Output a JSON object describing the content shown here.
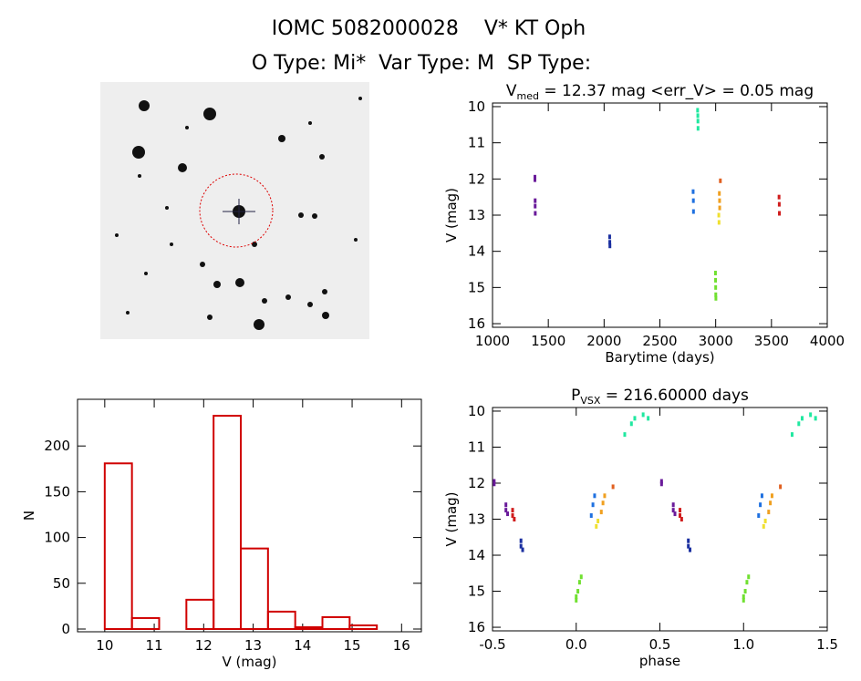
{
  "header": {
    "title": "IOMC 5082000028    V* KT Oph",
    "subtitle": "O Type: Mi*  Var Type: M  SP Type:"
  },
  "chart_data": [
    {
      "type": "scatter",
      "title": {
        "main": "V",
        "sub": "med",
        "rest": " = 12.37 mag <err_V> = 0.05 mag"
      },
      "x_label": "Barytime (days)",
      "y_label": "V (mag)",
      "xlim": [
        1000,
        4000
      ],
      "xticks": [
        1000,
        1500,
        2000,
        2500,
        3000,
        3500,
        4000
      ],
      "ylim": [
        16.1,
        9.9
      ],
      "yticks": [
        10,
        11,
        12,
        13,
        14,
        15,
        16
      ],
      "series": [
        {
          "color": "#6a1b9a",
          "x": [
            1380,
            1380,
            1382,
            1382,
            1383
          ],
          "values": [
            11.95,
            12.02,
            12.6,
            12.75,
            12.95
          ]
        },
        {
          "color": "#1a2fa0",
          "x": [
            2050,
            2051,
            2052
          ],
          "values": [
            13.6,
            13.75,
            13.85
          ]
        },
        {
          "color": "#1e70e0",
          "x": [
            2798,
            2800,
            2801
          ],
          "values": [
            12.35,
            12.6,
            12.9
          ]
        },
        {
          "color": "#20e8a0",
          "x": [
            2838,
            2840,
            2841,
            2842
          ],
          "values": [
            10.1,
            10.25,
            10.4,
            10.6
          ]
        },
        {
          "color": "#70e030",
          "x": [
            2998,
            2999,
            3000,
            3001,
            3002
          ],
          "values": [
            14.6,
            14.8,
            15.0,
            15.2,
            15.3
          ]
        },
        {
          "color": "#f0e030",
          "x": [
            3028,
            3030
          ],
          "values": [
            13.0,
            13.2
          ]
        },
        {
          "color": "#f0a020",
          "x": [
            3033,
            3035,
            3036
          ],
          "values": [
            12.4,
            12.6,
            12.8
          ]
        },
        {
          "color": "#e06020",
          "x": [
            3042
          ],
          "values": [
            12.05
          ]
        },
        {
          "color": "#d01c1c",
          "x": [
            3568,
            3570,
            3571
          ],
          "values": [
            12.5,
            12.7,
            12.95
          ]
        }
      ]
    },
    {
      "type": "histogram",
      "x_label": "V (mag)",
      "y_label": "N",
      "color": "#d00000",
      "xlim": [
        9.45,
        16.4
      ],
      "xticks": [
        10,
        11,
        12,
        13,
        14,
        15,
        16
      ],
      "ylim": [
        -3,
        251
      ],
      "yticks": [
        0,
        50,
        100,
        150,
        200
      ],
      "bins": [
        10,
        10.55,
        11.1,
        11.65,
        12.2,
        12.75,
        13.3,
        13.85,
        14.4,
        14.95,
        15.5
      ],
      "values": [
        181,
        12,
        0,
        32,
        233,
        88,
        19,
        2,
        13,
        4
      ]
    },
    {
      "type": "scatter",
      "title": {
        "main": "P",
        "sub": "VSX",
        "rest": " = 216.60000 days"
      },
      "x_label": "phase",
      "y_label": "V (mag)",
      "xlim": [
        -0.5,
        1.5
      ],
      "xticks": [
        -0.5,
        {
          "value": 0,
          "label": "0.0"
        },
        0.5,
        {
          "value": 1,
          "label": "1.0"
        },
        1.5
      ],
      "ylim": [
        16.1,
        9.9
      ],
      "yticks": [
        10,
        11,
        12,
        13,
        14,
        15,
        16
      ],
      "series": [
        {
          "color": "#6a1b9a",
          "x": [
            -0.49,
            -0.49,
            -0.42,
            -0.42,
            -0.41,
            0.51,
            0.51,
            0.58,
            0.58,
            0.59
          ],
          "values": [
            11.95,
            12.02,
            12.6,
            12.75,
            12.85,
            11.95,
            12.02,
            12.6,
            12.75,
            12.85
          ]
        },
        {
          "color": "#d01c1c",
          "x": [
            -0.38,
            -0.38,
            -0.37,
            0.62,
            0.62,
            0.63
          ],
          "values": [
            12.75,
            12.9,
            13.0,
            12.75,
            12.9,
            13.0
          ]
        },
        {
          "color": "#1a2fa0",
          "x": [
            -0.33,
            -0.33,
            -0.32,
            0.67,
            0.67,
            0.68
          ],
          "values": [
            13.6,
            13.75,
            13.85,
            13.6,
            13.75,
            13.85
          ]
        },
        {
          "color": "#1e70e0",
          "x": [
            0.09,
            0.1,
            0.11,
            1.09,
            1.1,
            1.11
          ],
          "values": [
            12.9,
            12.6,
            12.35,
            12.9,
            12.6,
            12.35
          ]
        },
        {
          "color": "#f0e030",
          "x": [
            0.12,
            0.13,
            1.12,
            1.13
          ],
          "values": [
            13.2,
            13.05,
            13.2,
            13.05
          ]
        },
        {
          "color": "#f0a020",
          "x": [
            0.15,
            0.16,
            0.17,
            1.15,
            1.16,
            1.17
          ],
          "values": [
            12.8,
            12.55,
            12.35,
            12.8,
            12.55,
            12.35
          ]
        },
        {
          "color": "#e06020",
          "x": [
            0.22,
            1.22
          ],
          "values": [
            12.1,
            12.1
          ]
        },
        {
          "color": "#20e8a0",
          "x": [
            0.29,
            0.33,
            0.35,
            0.4,
            0.43,
            1.29,
            1.33,
            1.35,
            1.4,
            1.43
          ],
          "values": [
            10.65,
            10.35,
            10.2,
            10.1,
            10.2,
            10.65,
            10.35,
            10.2,
            10.1,
            10.2
          ]
        },
        {
          "color": "#70e030",
          "x": [
            0,
            0,
            0.01,
            0.02,
            0.03,
            1,
            1,
            1.01,
            1.02,
            1.03
          ],
          "values": [
            15.15,
            15.25,
            15.0,
            14.75,
            14.6,
            15.15,
            15.25,
            15.0,
            14.75,
            14.6
          ]
        }
      ]
    }
  ]
}
